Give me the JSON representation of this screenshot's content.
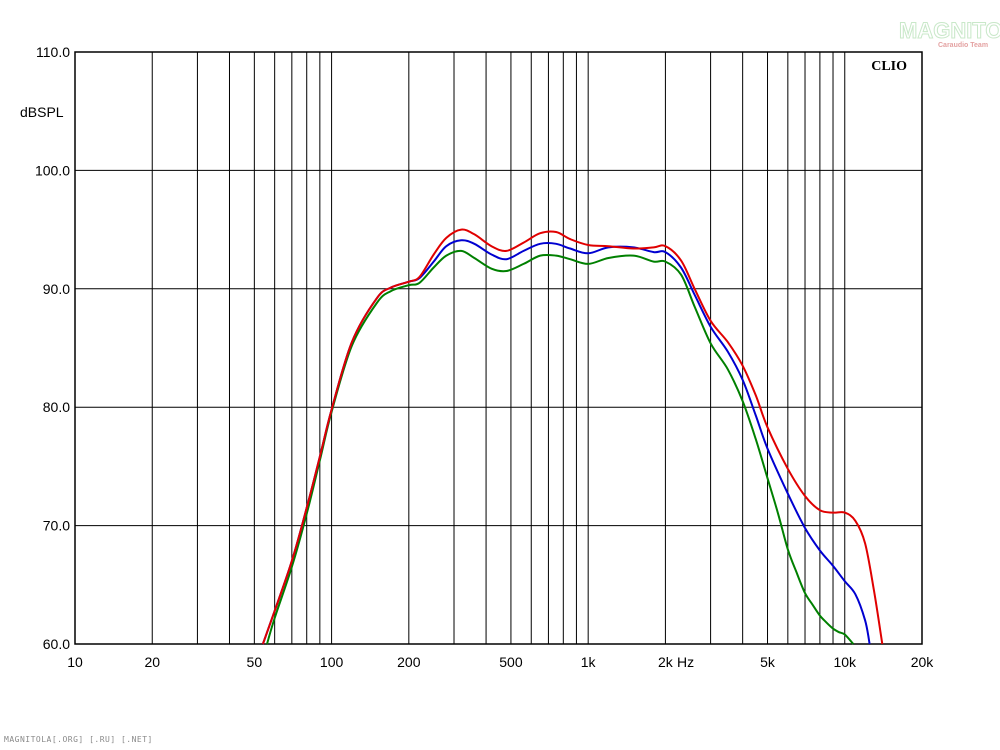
{
  "watermark": {
    "title": "MAGNITOLA",
    "subtitle": "Caraudio Team"
  },
  "footer": "MAGNITOLA[.ORG] [.RU] [.NET]",
  "colors": {
    "red": "#e00000",
    "blue": "#0000d0",
    "green": "#008000",
    "grid": "#000000"
  },
  "chart_data": {
    "type": "line",
    "title": "",
    "brand_label": "CLIO",
    "xlabel": "Hz",
    "ylabel": "dBSPL",
    "xscale": "log",
    "xlim": [
      10,
      20000
    ],
    "ylim": [
      60,
      110
    ],
    "grid": true,
    "x_ticks": [
      {
        "value": 10,
        "label": "10"
      },
      {
        "value": 20,
        "label": "20"
      },
      {
        "value": 50,
        "label": "50"
      },
      {
        "value": 100,
        "label": "100"
      },
      {
        "value": 200,
        "label": "200"
      },
      {
        "value": 500,
        "label": "500"
      },
      {
        "value": 1000,
        "label": "1k"
      },
      {
        "value": 2000,
        "label": "2k"
      },
      {
        "value": 5000,
        "label": "5k"
      },
      {
        "value": 10000,
        "label": "10k"
      },
      {
        "value": 20000,
        "label": "20k"
      }
    ],
    "y_ticks": [
      {
        "value": 110,
        "label": "110.0"
      },
      {
        "value": 100,
        "label": "100.0"
      },
      {
        "value": 90,
        "label": "90.0"
      },
      {
        "value": 80,
        "label": "80.0"
      },
      {
        "value": 70,
        "label": "70.0"
      },
      {
        "value": 60,
        "label": "60.0"
      }
    ],
    "series": [
      {
        "color": "#e00000",
        "x": [
          54,
          60,
          70,
          80,
          90,
          100,
          120,
          150,
          170,
          200,
          220,
          250,
          280,
          320,
          360,
          420,
          480,
          560,
          650,
          750,
          850,
          1000,
          1200,
          1500,
          1800,
          2000,
          2300,
          2600,
          3000,
          3500,
          4000,
          4500,
          5000,
          6000,
          7000,
          8000,
          9000,
          10000,
          11000,
          12000,
          13000,
          14000
        ],
        "y": [
          60,
          62.8,
          67,
          71.5,
          75.8,
          79.8,
          85.5,
          89.2,
          90.1,
          90.6,
          91,
          92.9,
          94.3,
          95,
          94.6,
          93.6,
          93.2,
          93.9,
          94.7,
          94.8,
          94.2,
          93.7,
          93.6,
          93.4,
          93.5,
          93.6,
          92.4,
          90,
          87.3,
          85.5,
          83.5,
          81,
          78.3,
          74.8,
          72.5,
          71.3,
          71.1,
          71.1,
          70.4,
          68.5,
          64.5,
          60
        ]
      },
      {
        "color": "#0000d0",
        "x": [
          54,
          60,
          70,
          80,
          90,
          100,
          120,
          150,
          170,
          200,
          220,
          250,
          280,
          320,
          360,
          420,
          480,
          560,
          650,
          750,
          850,
          1000,
          1200,
          1500,
          1800,
          2000,
          2300,
          2600,
          3000,
          3500,
          4000,
          4500,
          5000,
          6000,
          7000,
          8000,
          9000,
          10000,
          11000,
          12000,
          12500
        ],
        "y": [
          60,
          62.8,
          67,
          71.5,
          75.8,
          79.8,
          85.5,
          89.2,
          90.1,
          90.6,
          90.9,
          92.3,
          93.6,
          94.1,
          93.8,
          92.9,
          92.5,
          93.2,
          93.8,
          93.8,
          93.4,
          93,
          93.5,
          93.5,
          93.1,
          93.1,
          91.8,
          89.5,
          86.8,
          84.7,
          82.3,
          79.3,
          76.5,
          72.7,
          69.8,
          67.9,
          66.6,
          65.3,
          64.2,
          62,
          60
        ]
      },
      {
        "color": "#008000",
        "x": [
          56,
          60,
          70,
          80,
          90,
          100,
          120,
          150,
          170,
          200,
          220,
          250,
          280,
          320,
          360,
          420,
          480,
          560,
          650,
          750,
          850,
          1000,
          1200,
          1500,
          1800,
          2000,
          2300,
          2600,
          3000,
          3500,
          4000,
          4500,
          5000,
          5500,
          6000,
          6500,
          7000,
          7500,
          8000,
          8500,
          9000,
          9500,
          10000,
          10800
        ],
        "y": [
          60,
          62.2,
          66.5,
          71,
          75.5,
          79.6,
          85.2,
          88.8,
          89.8,
          90.3,
          90.5,
          91.8,
          92.8,
          93.2,
          92.6,
          91.7,
          91.5,
          92.1,
          92.8,
          92.8,
          92.5,
          92.1,
          92.6,
          92.8,
          92.3,
          92.3,
          91.2,
          88.5,
          85.4,
          83.2,
          80.5,
          77.3,
          74,
          71,
          68,
          66,
          64.3,
          63.3,
          62.4,
          61.8,
          61.3,
          61,
          60.8,
          60
        ]
      }
    ]
  }
}
